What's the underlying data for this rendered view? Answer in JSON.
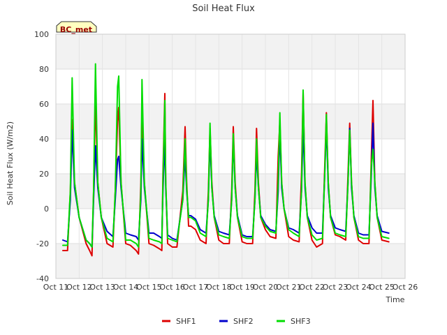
{
  "chart_data": {
    "type": "line",
    "title": "Soil Heat Flux",
    "xlabel": "Time",
    "ylabel": "Soil Heat Flux (W/m2)",
    "ylim": [
      -40,
      100
    ],
    "xlim": [
      11,
      26
    ],
    "yticks": [
      -40,
      -20,
      0,
      20,
      40,
      60,
      80,
      100
    ],
    "xticks": [
      {
        "value": 11,
        "label": "Oct 11"
      },
      {
        "value": 12,
        "label": "Oct 12"
      },
      {
        "value": 13,
        "label": "Oct 13"
      },
      {
        "value": 14,
        "label": "Oct 14"
      },
      {
        "value": 15,
        "label": "Oct 15"
      },
      {
        "value": 16,
        "label": "Oct 16"
      },
      {
        "value": 17,
        "label": "Oct 17"
      },
      {
        "value": 18,
        "label": "Oct 18"
      },
      {
        "value": 19,
        "label": "Oct 19"
      },
      {
        "value": 20,
        "label": "Oct 20"
      },
      {
        "value": 21,
        "label": "Oct 21"
      },
      {
        "value": 22,
        "label": "Oct 22"
      },
      {
        "value": 23,
        "label": "Oct 23"
      },
      {
        "value": 24,
        "label": "Oct 24"
      },
      {
        "value": 25,
        "label": "Oct 25"
      },
      {
        "value": 26,
        "label": "Oct 26"
      }
    ],
    "grid": true,
    "legend_position": "bottom-center",
    "annotation": "BC_met",
    "series": [
      {
        "name": "SHF1",
        "color": "#dd0000",
        "x": [
          11.3,
          11.5,
          11.62,
          11.7,
          11.8,
          12.0,
          12.3,
          12.45,
          12.55,
          12.62,
          12.7,
          12.8,
          12.95,
          13.2,
          13.45,
          13.55,
          13.65,
          13.7,
          13.8,
          14.0,
          14.2,
          14.45,
          14.55,
          14.65,
          14.7,
          14.8,
          15.0,
          15.2,
          15.45,
          15.55,
          15.6,
          15.68,
          15.72,
          15.8,
          16.0,
          16.2,
          16.45,
          16.55,
          16.62,
          16.7,
          16.8,
          17.0,
          17.2,
          17.45,
          17.55,
          17.62,
          17.7,
          17.8,
          18.0,
          18.2,
          18.45,
          18.55,
          18.62,
          18.7,
          18.8,
          19.0,
          19.2,
          19.45,
          19.55,
          19.62,
          19.7,
          19.8,
          20.0,
          20.2,
          20.45,
          20.55,
          20.62,
          20.7,
          20.8,
          21.0,
          21.2,
          21.45,
          21.55,
          21.62,
          21.7,
          21.8,
          22.0,
          22.2,
          22.45,
          22.55,
          22.62,
          22.7,
          22.8,
          23.0,
          23.2,
          23.45,
          23.55,
          23.62,
          23.7,
          23.8,
          24.0,
          24.2,
          24.45,
          24.55,
          24.62,
          24.7,
          24.8,
          25.0,
          25.3
        ],
        "y": [
          -24,
          -24,
          10,
          51,
          15,
          -5,
          -20,
          -24,
          -27,
          10,
          62,
          15,
          -5,
          -20,
          -22,
          10,
          50,
          58,
          15,
          -20,
          -21,
          -24,
          -26,
          15,
          58,
          15,
          -20,
          -21,
          -23,
          -24,
          20,
          66,
          15,
          -20,
          -22,
          -22,
          10,
          47,
          15,
          -10,
          -10,
          -12,
          -18,
          -20,
          10,
          46,
          15,
          -5,
          -18,
          -20,
          -20,
          10,
          47,
          15,
          -5,
          -19,
          -20,
          -20,
          10,
          46,
          15,
          -5,
          -12,
          -16,
          -17,
          30,
          50,
          15,
          0,
          -16,
          -18,
          -19,
          20,
          67,
          15,
          -5,
          -18,
          -22,
          -20,
          25,
          55,
          15,
          -5,
          -15,
          -16,
          -18,
          20,
          49,
          15,
          -5,
          -18,
          -20,
          -20,
          30,
          62,
          15,
          -5,
          -18,
          -19
        ]
      },
      {
        "name": "SHF2",
        "color": "#0000cc",
        "x": [
          11.3,
          11.5,
          11.62,
          11.7,
          11.8,
          12.0,
          12.3,
          12.45,
          12.55,
          12.62,
          12.7,
          12.8,
          12.95,
          13.2,
          13.45,
          13.55,
          13.65,
          13.7,
          13.8,
          14.0,
          14.2,
          14.45,
          14.55,
          14.65,
          14.7,
          14.8,
          15.0,
          15.2,
          15.45,
          15.55,
          15.6,
          15.68,
          15.72,
          15.8,
          16.0,
          16.2,
          16.45,
          16.55,
          16.62,
          16.7,
          16.8,
          17.0,
          17.2,
          17.45,
          17.55,
          17.62,
          17.7,
          17.8,
          18.0,
          18.2,
          18.45,
          18.55,
          18.62,
          18.7,
          18.8,
          19.0,
          19.2,
          19.45,
          19.55,
          19.62,
          19.7,
          19.8,
          20.0,
          20.2,
          20.45,
          20.55,
          20.62,
          20.7,
          20.8,
          21.0,
          21.2,
          21.45,
          21.55,
          21.62,
          21.7,
          21.8,
          22.0,
          22.2,
          22.45,
          22.55,
          22.62,
          22.7,
          22.8,
          23.0,
          23.2,
          23.45,
          23.55,
          23.62,
          23.7,
          23.8,
          24.0,
          24.2,
          24.45,
          24.55,
          24.62,
          24.7,
          24.8,
          25.0,
          25.3
        ],
        "y": [
          -18,
          -19,
          5,
          45,
          12,
          -5,
          -18,
          -20,
          -22,
          5,
          36,
          12,
          -5,
          -13,
          -16,
          5,
          28,
          30,
          12,
          -14,
          -15,
          -16,
          -18,
          5,
          40,
          12,
          -14,
          -14,
          -16,
          -17,
          10,
          40,
          12,
          -15,
          -17,
          -18,
          5,
          30,
          10,
          -4,
          -4,
          -6,
          -12,
          -14,
          5,
          40,
          12,
          -4,
          -13,
          -14,
          -15,
          5,
          40,
          12,
          -4,
          -15,
          -16,
          -16,
          5,
          32,
          12,
          -4,
          -9,
          -12,
          -13,
          10,
          45,
          12,
          0,
          -11,
          -12,
          -14,
          10,
          47,
          12,
          -4,
          -11,
          -14,
          -14,
          20,
          48,
          12,
          -4,
          -11,
          -12,
          -13,
          15,
          46,
          12,
          -4,
          -14,
          -15,
          -15,
          20,
          49,
          12,
          -4,
          -13,
          -14
        ]
      },
      {
        "name": "SHF3",
        "color": "#00dd00",
        "x": [
          11.3,
          11.5,
          11.62,
          11.7,
          11.8,
          12.0,
          12.3,
          12.45,
          12.55,
          12.62,
          12.7,
          12.8,
          12.95,
          13.2,
          13.45,
          13.55,
          13.65,
          13.7,
          13.8,
          14.0,
          14.2,
          14.45,
          14.55,
          14.65,
          14.7,
          14.8,
          15.0,
          15.2,
          15.45,
          15.55,
          15.6,
          15.68,
          15.72,
          15.8,
          16.0,
          16.2,
          16.45,
          16.55,
          16.62,
          16.7,
          16.8,
          17.0,
          17.2,
          17.45,
          17.55,
          17.62,
          17.7,
          17.8,
          18.0,
          18.2,
          18.45,
          18.55,
          18.62,
          18.7,
          18.8,
          19.0,
          19.2,
          19.45,
          19.55,
          19.62,
          19.7,
          19.8,
          20.0,
          20.2,
          20.45,
          20.55,
          20.62,
          20.7,
          20.8,
          21.0,
          21.2,
          21.45,
          21.55,
          21.62,
          21.7,
          21.8,
          22.0,
          22.2,
          22.45,
          22.55,
          22.62,
          22.7,
          22.8,
          23.0,
          23.2,
          23.45,
          23.55,
          23.62,
          23.7,
          23.8,
          24.0,
          24.2,
          24.45,
          24.55,
          24.62,
          24.7,
          24.8,
          25.0,
          25.3
        ],
        "y": [
          -21,
          -21,
          10,
          75,
          15,
          -5,
          -18,
          -20,
          -22,
          10,
          83,
          15,
          -5,
          -17,
          -19,
          10,
          70,
          76,
          15,
          -18,
          -18,
          -20,
          -22,
          10,
          74,
          15,
          -17,
          -18,
          -19,
          -20,
          15,
          62,
          15,
          -17,
          -18,
          -19,
          5,
          40,
          12,
          -5,
          -5,
          -7,
          -14,
          -16,
          5,
          49,
          12,
          -5,
          -15,
          -16,
          -17,
          5,
          43,
          12,
          -5,
          -16,
          -17,
          -17,
          5,
          40,
          12,
          -5,
          -10,
          -13,
          -14,
          15,
          55,
          15,
          0,
          -12,
          -14,
          -16,
          10,
          68,
          15,
          -5,
          -15,
          -18,
          -17,
          20,
          54,
          15,
          -5,
          -14,
          -15,
          -16,
          15,
          45,
          15,
          -5,
          -16,
          -17,
          -17,
          25,
          34,
          15,
          -5,
          -16,
          -17
        ]
      }
    ]
  }
}
